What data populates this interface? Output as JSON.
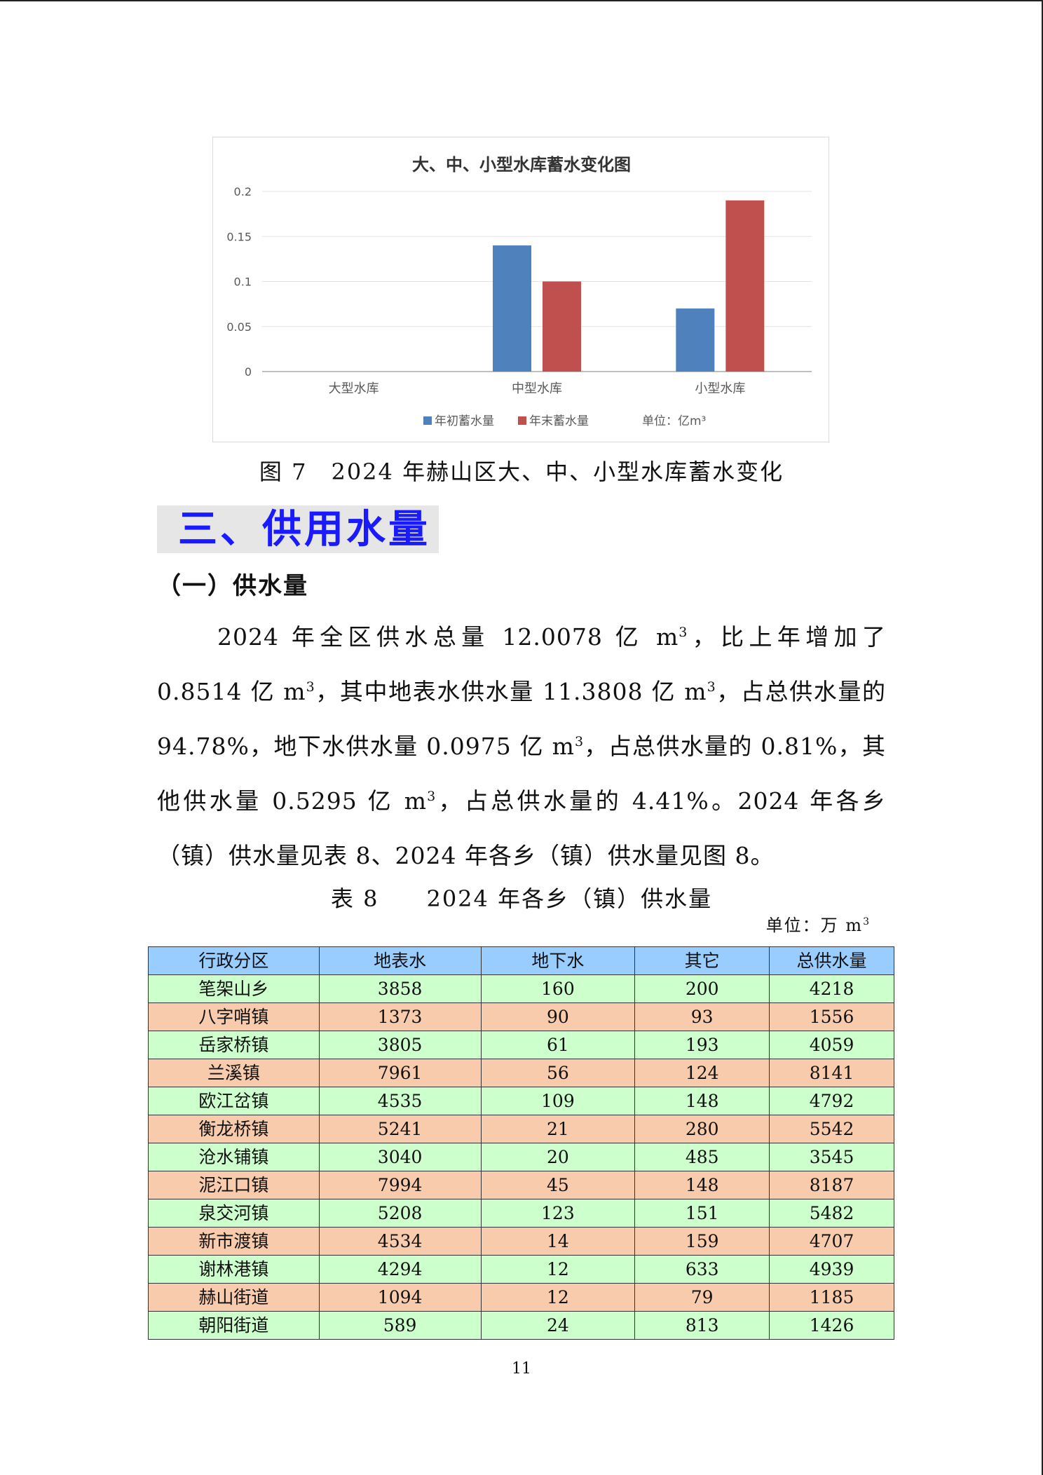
{
  "chart_data": {
    "type": "bar",
    "title": "大、中、小型水库蓄水变化图",
    "categories": [
      "大型水库",
      "中型水库",
      "小型水库"
    ],
    "series": [
      {
        "name": "年初蓄水量",
        "values": [
          0,
          0.14,
          0.07
        ],
        "color": "#4f81bd"
      },
      {
        "name": "年末蓄水量",
        "values": [
          0,
          0.1,
          0.19
        ],
        "color": "#c0504d"
      }
    ],
    "y_ticks": [
      "0",
      "0.05",
      "0.1",
      "0.15",
      "0.2"
    ],
    "ylim": [
      0,
      0.2
    ],
    "grid": true,
    "legend_placement": "bottom",
    "unit_label": "单位：亿m³"
  },
  "figure_caption": "图 7　2024 年赫山区大、中、小型水库蓄水变化",
  "section_heading": "三、供用水量",
  "subheading": "（一）供水量",
  "paragraph": {
    "s1": "2024 年全区供水总量 12.0078 亿 m",
    "s2": "，比上年增加了 0.8514 亿 m",
    "s3": "，其中地表水供水量 11.3808 亿 m",
    "s4": "，占总供水量的 94.78%，地下水供水量 0.0975 亿 m",
    "s5": "，占总供水量的 0.81%，其他供水量 0.5295 亿 m",
    "s6": "，占总供水量的 4.41%。2024 年各乡（镇）供水量见表 8、2024 年各乡（镇）供水量见图 8。",
    "sup": "3"
  },
  "table_caption": "表 8　　2024 年各乡（镇）供水量",
  "table_unit": "单位：万 m",
  "table_unit_sup": "3",
  "table": {
    "headers": [
      "行政分区",
      "地表水",
      "地下水",
      "其它",
      "总供水量"
    ],
    "rows": [
      [
        "笔架山乡",
        "3858",
        "160",
        "200",
        "4218"
      ],
      [
        "八字哨镇",
        "1373",
        "90",
        "93",
        "1556"
      ],
      [
        "岳家桥镇",
        "3805",
        "61",
        "193",
        "4059"
      ],
      [
        "兰溪镇",
        "7961",
        "56",
        "124",
        "8141"
      ],
      [
        "欧江岔镇",
        "4535",
        "109",
        "148",
        "4792"
      ],
      [
        "衡龙桥镇",
        "5241",
        "21",
        "280",
        "5542"
      ],
      [
        "沧水铺镇",
        "3040",
        "20",
        "485",
        "3545"
      ],
      [
        "泥江口镇",
        "7994",
        "45",
        "148",
        "8187"
      ],
      [
        "泉交河镇",
        "5208",
        "123",
        "151",
        "5482"
      ],
      [
        "新市渡镇",
        "4534",
        "14",
        "159",
        "4707"
      ],
      [
        "谢林港镇",
        "4294",
        "12",
        "633",
        "4939"
      ],
      [
        "赫山街道",
        "1094",
        "12",
        "79",
        "1185"
      ],
      [
        "朝阳街道",
        "589",
        "24",
        "813",
        "1426"
      ]
    ],
    "row_colors": [
      "#ccffcc",
      "#f8cbad"
    ],
    "header_color": "#99ccff"
  },
  "page_number": "11"
}
